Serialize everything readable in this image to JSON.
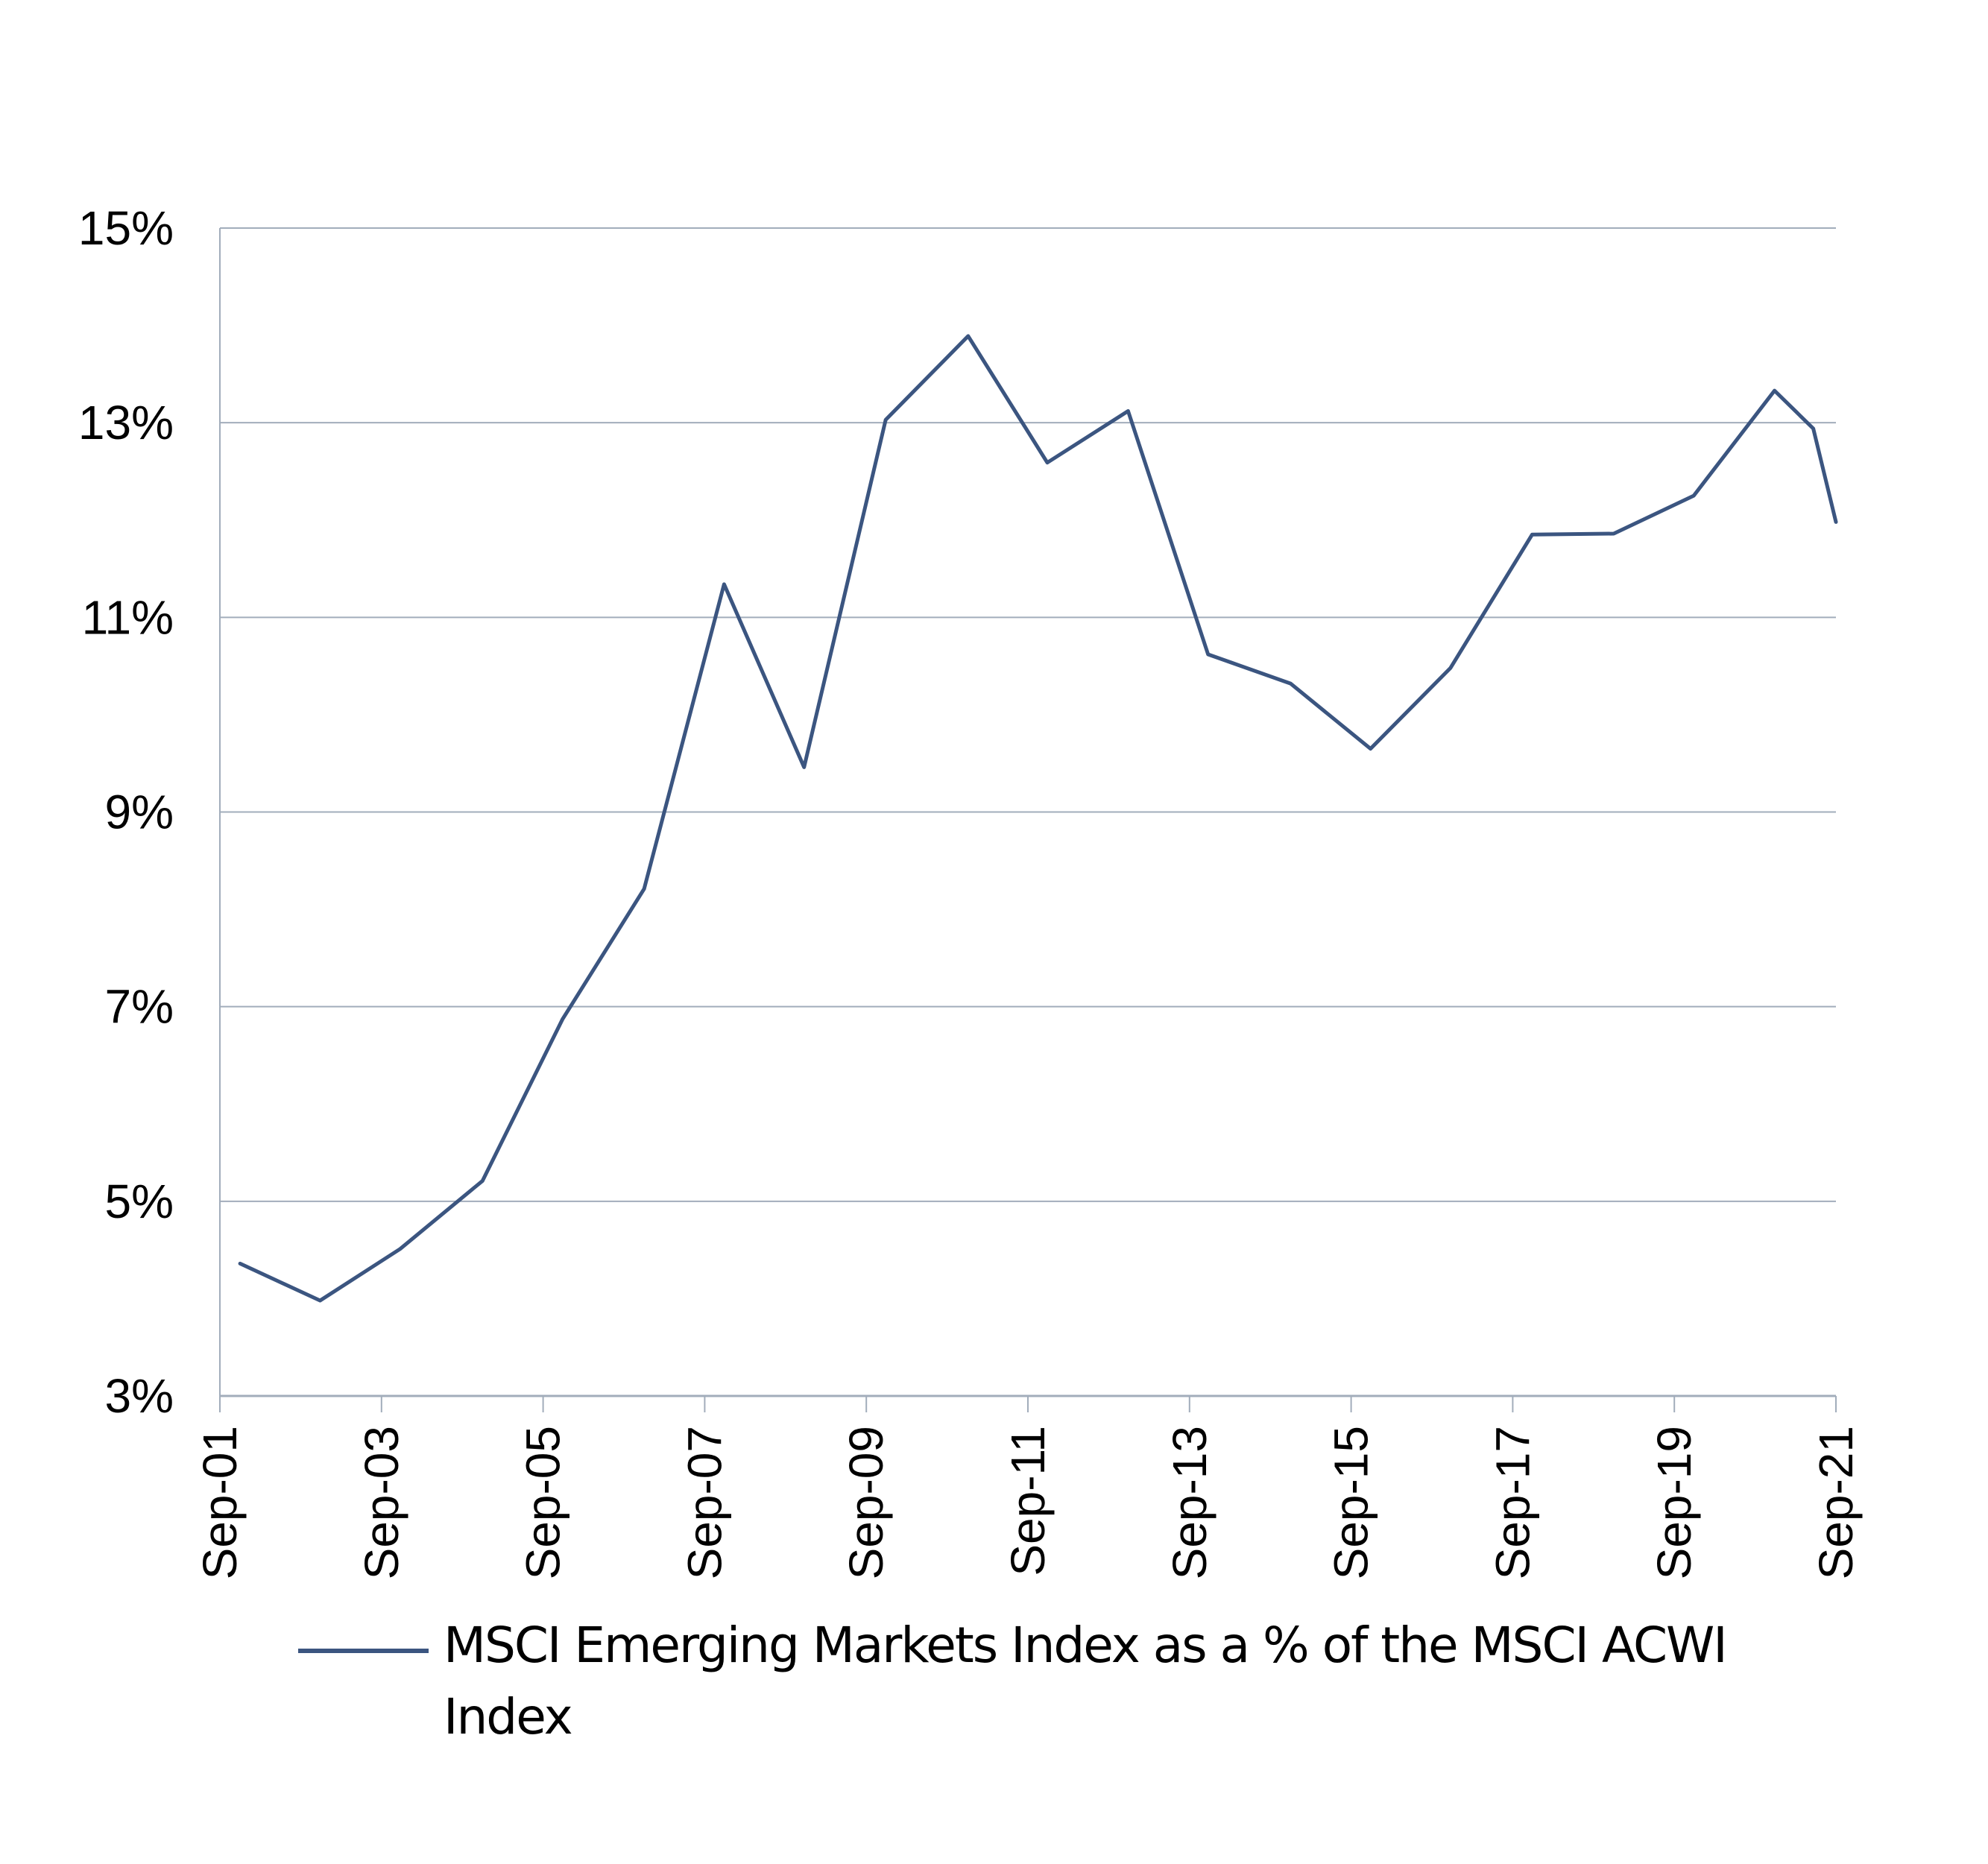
{
  "chart_data": {
    "type": "line",
    "title": "",
    "xlabel": "",
    "ylabel": "",
    "ylim": [
      3,
      15
    ],
    "yticks": [
      3,
      5,
      7,
      9,
      11,
      13,
      15
    ],
    "ytick_labels": [
      "3%",
      "5%",
      "7%",
      "9%",
      "11%",
      "13%",
      "15%"
    ],
    "xlim": [
      2001.0,
      2021.0
    ],
    "xticks": [
      2001,
      2003,
      2005,
      2007,
      2009,
      2011,
      2013,
      2015,
      2017,
      2019,
      2021
    ],
    "xtick_labels": [
      "Sep-01",
      "Sep-03",
      "Sep-05",
      "Sep-07",
      "Sep-09",
      "Sep-11",
      "Sep-13",
      "Sep-15",
      "Sep-17",
      "Sep-19",
      "Sep-21"
    ],
    "grid": true,
    "legend_position": "bottom",
    "series": [
      {
        "name": "MSCI Emerging Markets Index as a % of the MSCI ACWI Index",
        "color": "#3b5580",
        "x": [
          2001.25,
          2002.24,
          2003.23,
          2004.25,
          2005.24,
          2006.25,
          2007.24,
          2008.23,
          2009.24,
          2010.26,
          2011.24,
          2012.24,
          2013.23,
          2014.25,
          2015.24,
          2016.23,
          2017.24,
          2018.25,
          2019.24,
          2020.24,
          2020.72,
          2021.0
        ],
        "values": [
          4.36,
          3.98,
          4.51,
          5.21,
          6.87,
          8.21,
          11.34,
          9.46,
          13.03,
          13.89,
          12.59,
          13.12,
          10.62,
          10.32,
          9.65,
          10.48,
          11.85,
          11.86,
          12.25,
          13.33,
          12.94,
          11.98
        ]
      }
    ]
  },
  "legend": {
    "label": "MSCI Emerging Markets Index as a % of the MSCI ACWI Index"
  },
  "colors": {
    "line": "#3b5580",
    "grid": "#a2adbb",
    "axis": "#a2adbb"
  }
}
